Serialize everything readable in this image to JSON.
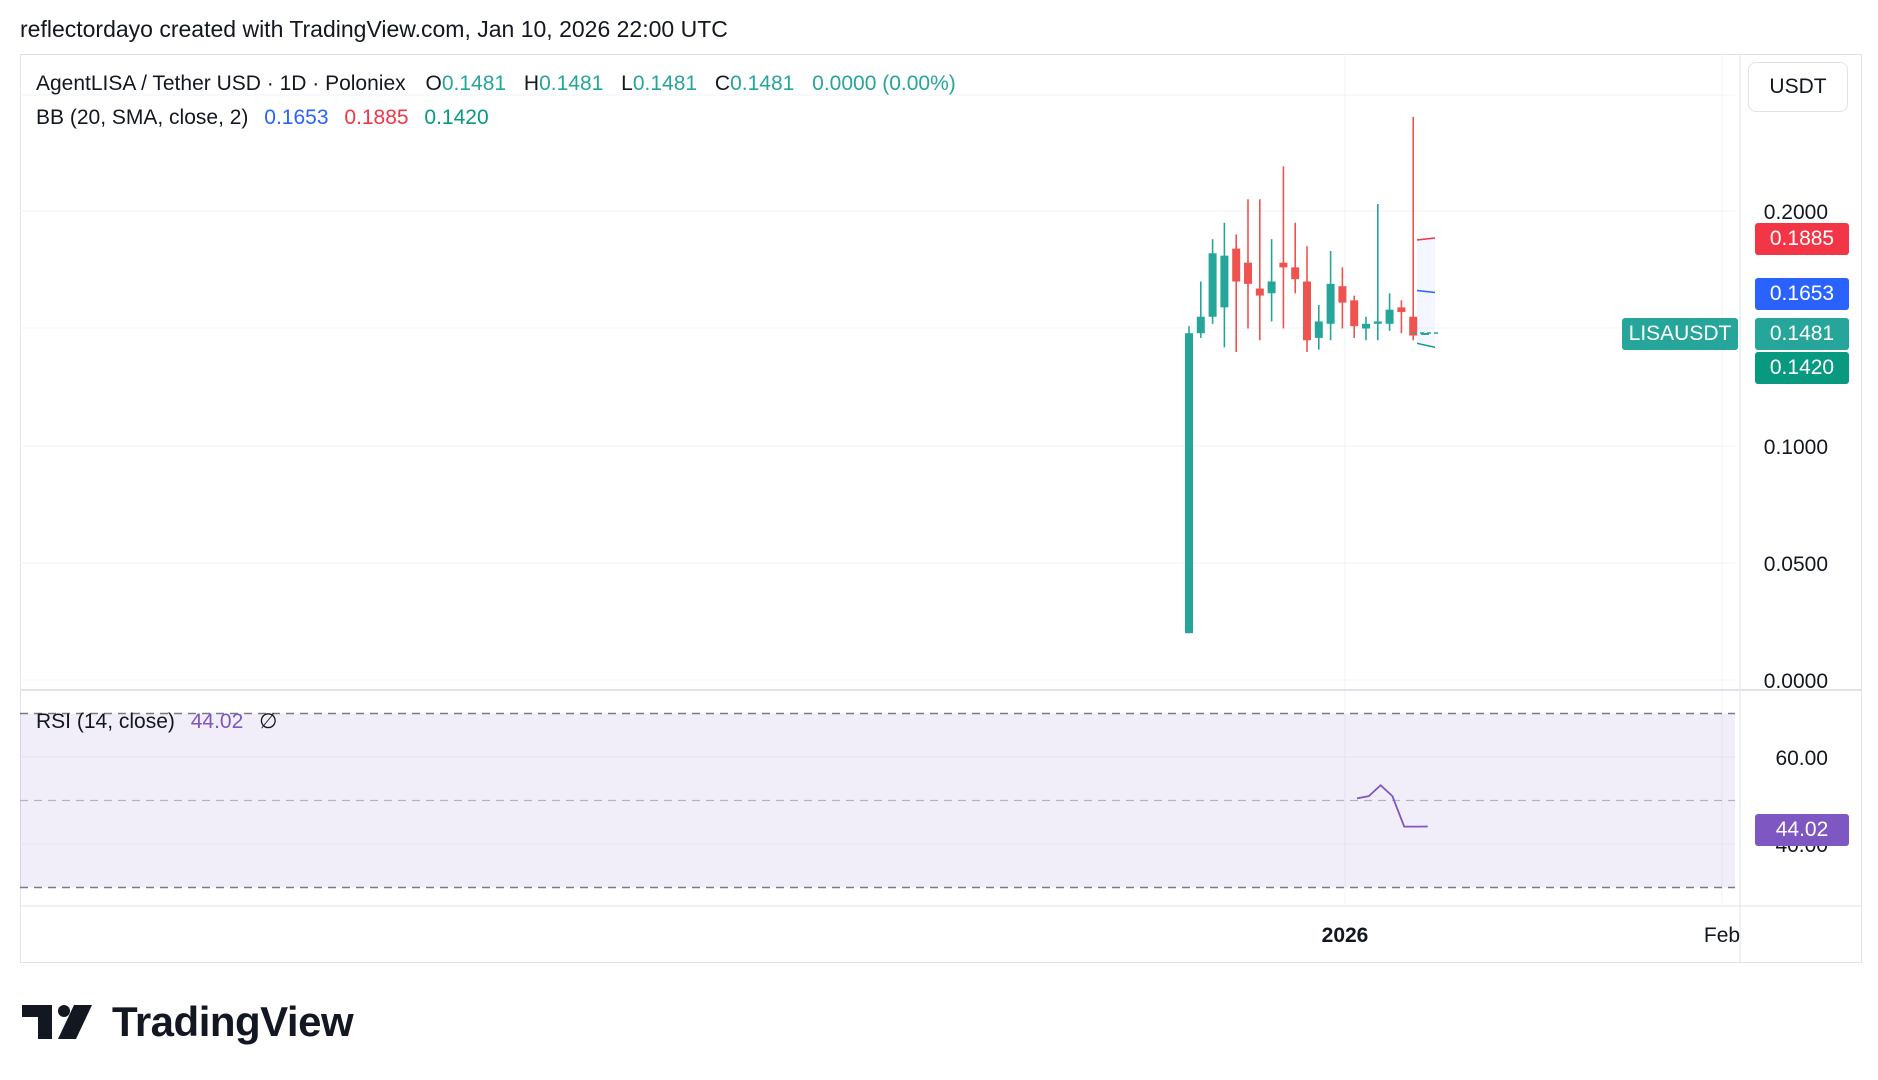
{
  "header": {
    "attribution": "reflectordayo created with TradingView.com, Jan 10, 2026 22:00 UTC"
  },
  "legend": {
    "symbol": "AgentLISA / Tether USD · 1D · Poloniex",
    "o_label": "O",
    "o_value": "0.1481",
    "h_label": "H",
    "h_value": "0.1481",
    "l_label": "L",
    "l_value": "0.1481",
    "c_label": "C",
    "c_value": "0.1481",
    "change": "0.0000 (0.00%)",
    "bb_label": "BB (20, SMA, close, 2)",
    "bb_basis": "0.1653",
    "bb_upper": "0.1885",
    "bb_lower": "0.1420",
    "rsi_label": "RSI (14, close)",
    "rsi_value": "44.02",
    "rsi_icon": "∅"
  },
  "price_axis": {
    "unit": "USDT",
    "ticks": [
      "0.2000",
      "0.1000",
      "0.0500",
      "0.0000"
    ]
  },
  "rsi_axis": {
    "ticks": [
      "60.00",
      "40.00"
    ]
  },
  "time_axis": {
    "ticks": [
      "2026",
      "Feb"
    ]
  },
  "price_labels": {
    "upper": "0.1885",
    "basis": "0.1653",
    "last": "0.1481",
    "lower": "0.1420",
    "symbol": "LISAUSDT"
  },
  "colors": {
    "up": "#26a69a",
    "down": "#ef5350",
    "bb_basis": "#2962ff",
    "bb_upper": "#f23645",
    "bb_lower": "#089981",
    "rsi": "#7e57c2",
    "rsi_band": "#7e57c2"
  },
  "logo": {
    "text": "TradingView"
  },
  "chart_data": {
    "type": "candlestick",
    "price_scale": "log",
    "candles": [
      {
        "o": 0.02,
        "h": 0.151,
        "l": 0.02,
        "c": 0.148
      },
      {
        "o": 0.148,
        "h": 0.17,
        "l": 0.146,
        "c": 0.155
      },
      {
        "o": 0.155,
        "h": 0.188,
        "l": 0.152,
        "c": 0.182
      },
      {
        "o": 0.159,
        "h": 0.195,
        "l": 0.142,
        "c": 0.181
      },
      {
        "o": 0.184,
        "h": 0.19,
        "l": 0.14,
        "c": 0.17
      },
      {
        "o": 0.178,
        "h": 0.205,
        "l": 0.15,
        "c": 0.169
      },
      {
        "o": 0.167,
        "h": 0.205,
        "l": 0.145,
        "c": 0.164
      },
      {
        "o": 0.165,
        "h": 0.188,
        "l": 0.153,
        "c": 0.17
      },
      {
        "o": 0.178,
        "h": 0.219,
        "l": 0.15,
        "c": 0.176
      },
      {
        "o": 0.176,
        "h": 0.195,
        "l": 0.165,
        "c": 0.171
      },
      {
        "o": 0.17,
        "h": 0.185,
        "l": 0.14,
        "c": 0.145
      },
      {
        "o": 0.146,
        "h": 0.16,
        "l": 0.141,
        "c": 0.153
      },
      {
        "o": 0.152,
        "h": 0.183,
        "l": 0.145,
        "c": 0.169
      },
      {
        "o": 0.168,
        "h": 0.176,
        "l": 0.15,
        "c": 0.161
      },
      {
        "o": 0.162,
        "h": 0.164,
        "l": 0.146,
        "c": 0.151
      },
      {
        "o": 0.15,
        "h": 0.155,
        "l": 0.145,
        "c": 0.152
      },
      {
        "o": 0.152,
        "h": 0.203,
        "l": 0.145,
        "c": 0.153
      },
      {
        "o": 0.152,
        "h": 0.165,
        "l": 0.149,
        "c": 0.158
      },
      {
        "o": 0.159,
        "h": 0.162,
        "l": 0.148,
        "c": 0.157
      },
      {
        "o": 0.155,
        "h": 0.24,
        "l": 0.145,
        "c": 0.147
      },
      {
        "o": 0.1481,
        "h": 0.1481,
        "l": 0.1481,
        "c": 0.1481
      }
    ],
    "bollinger": {
      "basis": 0.1653,
      "upper": 0.1885,
      "lower": 0.142
    },
    "rsi": {
      "values": [
        50.5,
        51.0,
        53.5,
        51.0,
        44.0,
        44.0,
        44.02
      ],
      "upper_band": 70,
      "lower_band": 30,
      "mid": 50,
      "range": [
        25,
        72
      ]
    },
    "price_ylim": [
      0.0,
      0.24
    ]
  }
}
